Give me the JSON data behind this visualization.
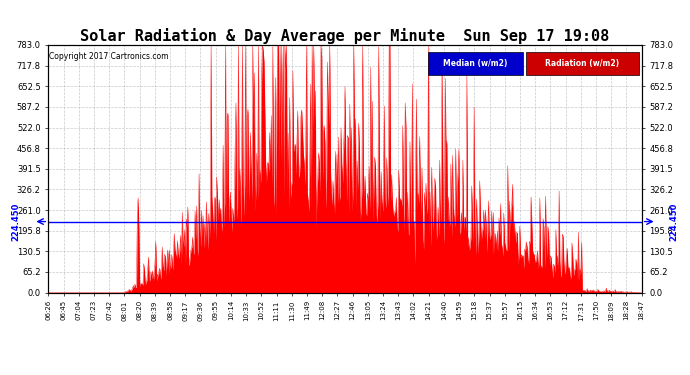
{
  "title": "Solar Radiation & Day Average per Minute  Sun Sep 17 19:08",
  "copyright": "Copyright 2017 Cartronics.com",
  "median_value": 224.45,
  "y_ticks": [
    0.0,
    65.2,
    130.5,
    195.8,
    261.0,
    326.2,
    391.5,
    456.8,
    522.0,
    587.2,
    652.5,
    717.8,
    783.0
  ],
  "y_min": 0.0,
  "y_max": 783.0,
  "fill_color": "#FF0000",
  "median_line_color": "#0000FF",
  "background_color": "#FFFFFF",
  "grid_color": "#BBBBBB",
  "title_fontsize": 11,
  "legend_median_color": "#0000CC",
  "legend_radiation_color": "#CC0000",
  "x_labels": [
    "06:26",
    "06:45",
    "07:04",
    "07:23",
    "07:42",
    "08:01",
    "08:20",
    "08:39",
    "08:58",
    "09:17",
    "09:36",
    "09:55",
    "10:14",
    "10:33",
    "10:52",
    "11:11",
    "11:30",
    "11:49",
    "12:08",
    "12:27",
    "12:46",
    "13:05",
    "13:24",
    "13:43",
    "14:02",
    "14:21",
    "14:40",
    "14:59",
    "15:18",
    "15:37",
    "15:57",
    "16:15",
    "16:34",
    "16:53",
    "17:12",
    "17:31",
    "17:50",
    "18:09",
    "18:28",
    "18:47"
  ]
}
